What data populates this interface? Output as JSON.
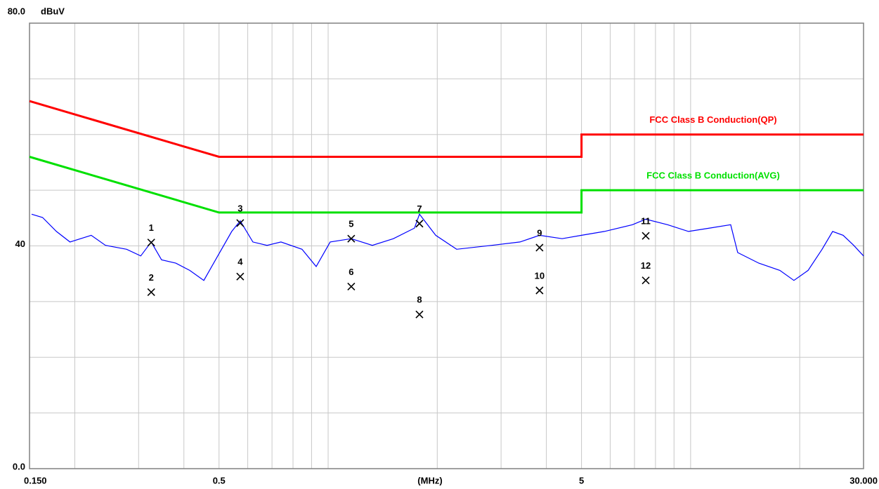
{
  "chart_data": {
    "type": "line",
    "y_label": "dBuV",
    "x_label": "(MHz)",
    "xlim": [
      0.15,
      30
    ],
    "ylim": [
      0,
      80
    ],
    "log_x": true,
    "grid": true,
    "xticks": [
      {
        "value": 0.15,
        "label": "0.150"
      },
      0.5,
      5,
      {
        "value": 30,
        "label": "30.000"
      }
    ],
    "xminor_ticks": [
      0.2,
      0.3,
      0.4,
      0.6,
      0.7,
      0.8,
      0.9,
      1,
      2,
      3,
      4,
      6,
      7,
      8,
      9,
      10,
      20
    ],
    "yticks": [
      {
        "value": 0,
        "label": "0.0"
      },
      40,
      {
        "value": 80,
        "label": "80.0"
      }
    ],
    "yminor_ticks": [
      10,
      20,
      30,
      50,
      60,
      70
    ],
    "series": [
      {
        "name": "FCC Class B Conduction(QP)",
        "color": "#ff0000",
        "x": [
          0.15,
          0.5,
          5,
          5,
          30
        ],
        "values": [
          66,
          56,
          56,
          60,
          60
        ]
      },
      {
        "name": "FCC Class B Conduction(AVG)",
        "color": "#00e000",
        "x": [
          0.15,
          0.5,
          5,
          5,
          30
        ],
        "values": [
          56,
          46,
          46,
          50,
          50
        ]
      },
      {
        "color": "#0000ff",
        "x": [
          0.152,
          0.163,
          0.178,
          0.194,
          0.222,
          0.243,
          0.278,
          0.304,
          0.325,
          0.347,
          0.38,
          0.415,
          0.454,
          0.496,
          0.542,
          0.572,
          0.62,
          0.678,
          0.741,
          0.847,
          0.927,
          1.013,
          1.158,
          1.324,
          1.514,
          1.731,
          1.786,
          1.98,
          2.262,
          2.829,
          3.382,
          3.83,
          4.42,
          5.0,
          5.78,
          6.91,
          7.52,
          8.64,
          9.87,
          11.28,
          12.9,
          13.49,
          15.43,
          17.63,
          19.28,
          21.09,
          23.05,
          24.65,
          26.36,
          28.18,
          30
        ],
        "values": [
          45.7,
          45.1,
          42.6,
          40.7,
          41.9,
          40.1,
          39.4,
          38.2,
          40.7,
          37.5,
          36.9,
          35.6,
          33.8,
          38.2,
          42.6,
          44.5,
          40.7,
          40.1,
          40.7,
          39.4,
          36.3,
          40.7,
          41.3,
          40.1,
          41.3,
          43.2,
          45.7,
          41.9,
          39.4,
          40.1,
          40.7,
          41.9,
          41.3,
          41.9,
          42.6,
          43.8,
          44.8,
          43.8,
          42.6,
          43.2,
          43.8,
          38.8,
          36.9,
          35.6,
          33.8,
          35.6,
          39.4,
          42.6,
          41.9,
          40.1,
          38.2
        ]
      }
    ],
    "markers": [
      {
        "label": "1",
        "x": 0.325,
        "value": 40.6
      },
      {
        "label": "2",
        "x": 0.325,
        "value": 31.7
      },
      {
        "label": "3",
        "x": 0.572,
        "value": 44.1
      },
      {
        "label": "4",
        "x": 0.572,
        "value": 34.5
      },
      {
        "label": "5",
        "x": 1.158,
        "value": 41.3
      },
      {
        "label": "6",
        "x": 1.158,
        "value": 32.7
      },
      {
        "label": "7",
        "x": 1.786,
        "value": 44.0
      },
      {
        "label": "8",
        "x": 1.786,
        "value": 27.7
      },
      {
        "label": "9",
        "x": 3.83,
        "value": 39.7
      },
      {
        "label": "10",
        "x": 3.83,
        "value": 32.0
      },
      {
        "label": "11",
        "x": 7.52,
        "value": 41.8
      },
      {
        "label": "12",
        "x": 7.52,
        "value": 33.8
      }
    ]
  }
}
